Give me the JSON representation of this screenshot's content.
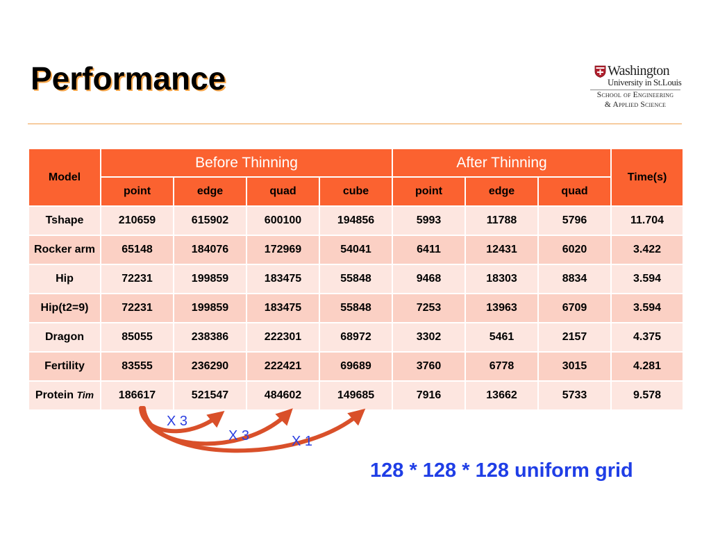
{
  "slide": {
    "title": "Performance",
    "note": "128 * 128 * 128 uniform grid"
  },
  "logo": {
    "name": "Washington",
    "sub": "University in St.Louis",
    "school_line1": "School of Engineering",
    "school_line2": "& Applied Science"
  },
  "table": {
    "model_header": "Model",
    "before_header": "Before Thinning",
    "after_header": "After Thinning",
    "time_header": "Time(s)",
    "before_cols": [
      "point",
      "edge",
      "quad",
      "cube"
    ],
    "after_cols": [
      "point",
      "edge",
      "quad"
    ],
    "rows": [
      {
        "model": "Tshape",
        "values": [
          "210659",
          "615902",
          "600100",
          "194856",
          "5993",
          "11788",
          "5796",
          "11.704"
        ]
      },
      {
        "model": "Rocker arm",
        "values": [
          "65148",
          "184076",
          "172969",
          "54041",
          "6411",
          "12431",
          "6020",
          "3.422"
        ]
      },
      {
        "model": "Hip",
        "values": [
          "72231",
          "199859",
          "183475",
          "55848",
          "9468",
          "18303",
          "8834",
          "3.594"
        ]
      },
      {
        "model": "Hip(t2=9)",
        "values": [
          "72231",
          "199859",
          "183475",
          "55848",
          "7253",
          "13963",
          "6709",
          "3.594"
        ]
      },
      {
        "model": "Dragon",
        "values": [
          "85055",
          "238386",
          "222301",
          "68972",
          "3302",
          "5461",
          "2157",
          "4.375"
        ]
      },
      {
        "model": "Fertility",
        "values": [
          "83555",
          "236290",
          "222421",
          "69689",
          "3760",
          "6778",
          "3015",
          "4.281"
        ]
      },
      {
        "model": "Protein",
        "model_suffix": "Tim",
        "values": [
          "186617",
          "521547",
          "484602",
          "149685",
          "7916",
          "13662",
          "5733",
          "9.578"
        ]
      }
    ]
  },
  "annotations": {
    "x3_first": "X 3",
    "x3_second": "X 3",
    "x1": "X 1"
  },
  "colors": {
    "header": "#fb6230",
    "row_light": "#fde6e0",
    "row_dark": "#fbd0c4",
    "arrow": "#d9502a",
    "note": "#1f3ee6"
  }
}
